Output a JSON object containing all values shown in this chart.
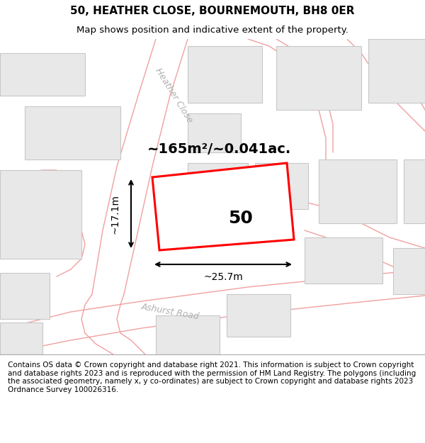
{
  "title_line1": "50, HEATHER CLOSE, BOURNEMOUTH, BH8 0ER",
  "title_line2": "Map shows position and indicative extent of the property.",
  "footer_text": "Contains OS data © Crown copyright and database right 2021. This information is subject to Crown copyright and database rights 2023 and is reproduced with the permission of HM Land Registry. The polygons (including the associated geometry, namely x, y co-ordinates) are subject to Crown copyright and database rights 2023 Ordnance Survey 100026316.",
  "area_label": "~165m²/~0.041ac.",
  "property_number": "50",
  "dim_width": "~25.7m",
  "dim_height": "~17.1m",
  "street1": "Heather Close",
  "street2": "Ashurst Road",
  "map_bg": "#ffffff",
  "road_outline": "#f0a0a0",
  "building_fill": "#e8e8e8",
  "building_edge": "#c8c8c8",
  "property_edge": "#ff0000",
  "property_fill": "#ffffff",
  "title_fontsize": 11,
  "subtitle_fontsize": 9.5,
  "footer_fontsize": 7.5,
  "area_fontsize": 14,
  "number_fontsize": 18,
  "dim_fontsize": 10,
  "street_fontsize": 9
}
